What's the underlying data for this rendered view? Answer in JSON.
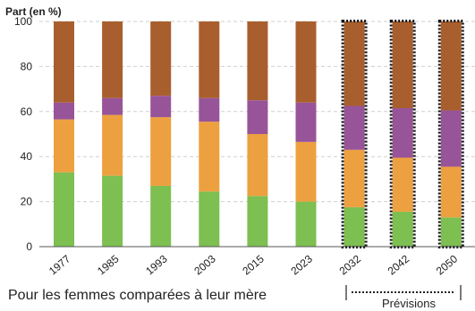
{
  "chart_data": {
    "type": "bar",
    "stacked": true,
    "ylabel": "Part (en %)",
    "ylim": [
      0,
      100
    ],
    "y_ticks": [
      "0",
      "20",
      "40",
      "60",
      "80",
      "100"
    ],
    "grid": true,
    "categories": [
      "1977",
      "1985",
      "1993",
      "2003",
      "2015",
      "2023",
      "2032",
      "2042",
      "2050"
    ],
    "forecast_categories": [
      "2032",
      "2042",
      "2050"
    ],
    "series": [
      {
        "color": "#7dbf51",
        "values": [
          33,
          31.5,
          27,
          24.5,
          22.5,
          20,
          17.5,
          15.5,
          13
        ]
      },
      {
        "color": "#eda040",
        "values": [
          23.5,
          27,
          30.5,
          31,
          27.5,
          26.5,
          25.5,
          24,
          22.5
        ]
      },
      {
        "color": "#985499",
        "values": [
          7.5,
          7.5,
          9.5,
          10.5,
          15,
          17.5,
          19.5,
          22,
          25
        ]
      },
      {
        "color": "#a95f2d",
        "values": [
          36,
          34,
          33,
          34,
          35,
          36,
          37.5,
          38.5,
          39.5
        ]
      }
    ],
    "caption": "Pour les femmes comparées à leur mère",
    "forecast_label": "Prévisions"
  }
}
